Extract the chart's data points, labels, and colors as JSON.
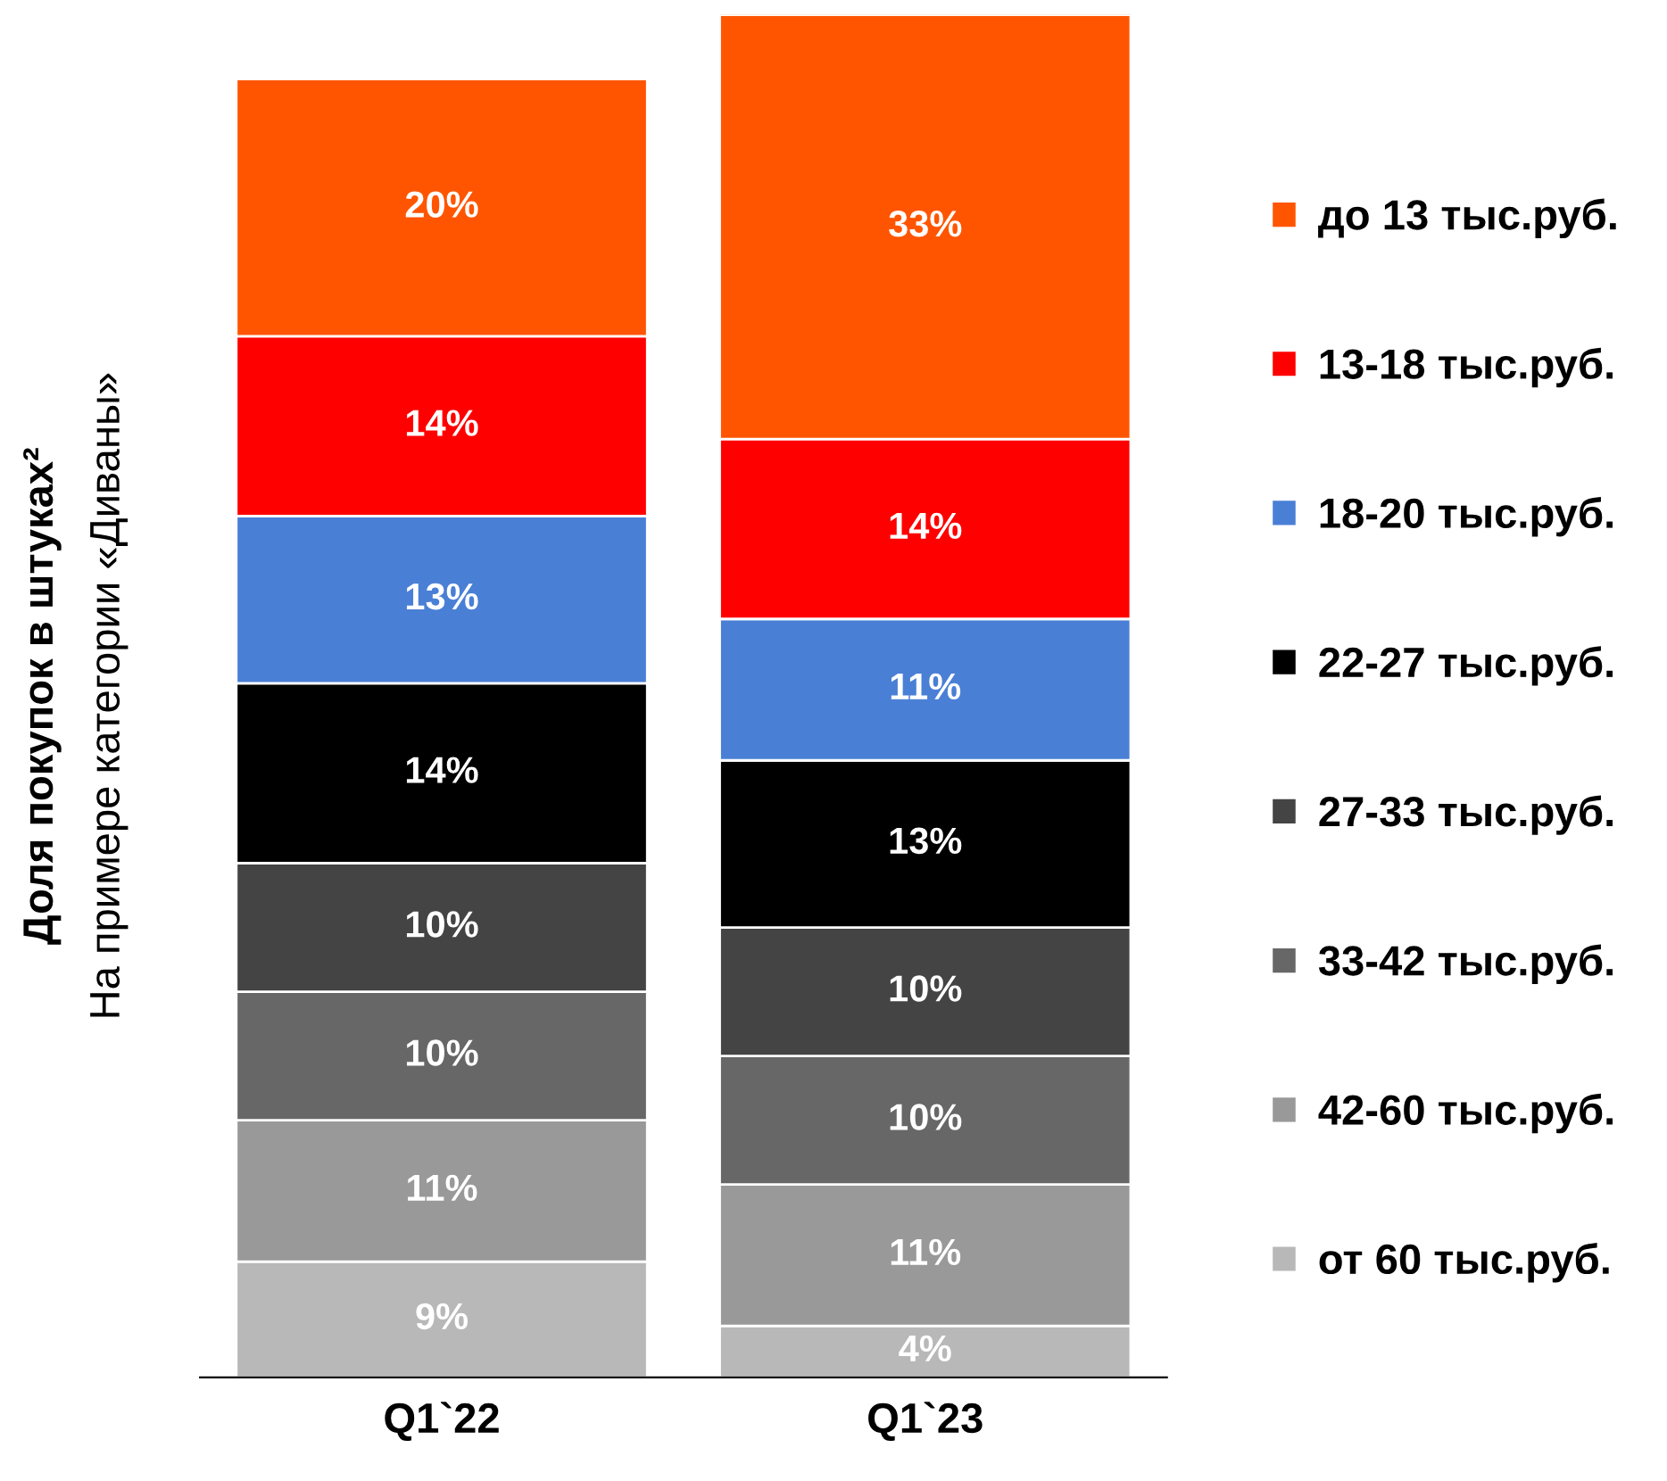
{
  "chart_data": {
    "type": "bar",
    "stacked": true,
    "ylabel": "Доля покупок в штуках²",
    "annotations": [
      "На примере категории «Диваны»"
    ],
    "categories": [
      "Q1`22",
      "Q1`23"
    ],
    "legend": "right",
    "tick_labels": "x",
    "series": [
      {
        "name": "от 60 тыс.руб.",
        "color": "#b8b8b8",
        "values": [
          9,
          4
        ],
        "value_labels": [
          "9%",
          "4%"
        ]
      },
      {
        "name": "42-60 тыс.руб.",
        "color": "#999999",
        "values": [
          11,
          11
        ],
        "value_labels": [
          "11%",
          "11%"
        ]
      },
      {
        "name": "33-42 тыс.руб.",
        "color": "#676767",
        "values": [
          10,
          10
        ],
        "value_labels": [
          "10%",
          "10%"
        ]
      },
      {
        "name": "27-33 тыс.руб.",
        "color": "#444444",
        "values": [
          10,
          10
        ],
        "value_labels": [
          "10%",
          "10%"
        ]
      },
      {
        "name": "22-27 тыс.руб.",
        "color": "#000000",
        "values": [
          14,
          13
        ],
        "value_labels": [
          "14%",
          "13%"
        ]
      },
      {
        "name": "18-20 тыс.руб.",
        "color": "#4a7fd6",
        "values": [
          13,
          11
        ],
        "value_labels": [
          "13%",
          "11%"
        ]
      },
      {
        "name": "13-18 тыс.руб.",
        "color": "#ff0000",
        "values": [
          14,
          14
        ],
        "value_labels": [
          "14%",
          "14%"
        ]
      },
      {
        "name": "до 13 тыс.руб.",
        "color": "#ff5500",
        "values": [
          20,
          33
        ],
        "value_labels": [
          "20%",
          "33%"
        ]
      }
    ]
  }
}
